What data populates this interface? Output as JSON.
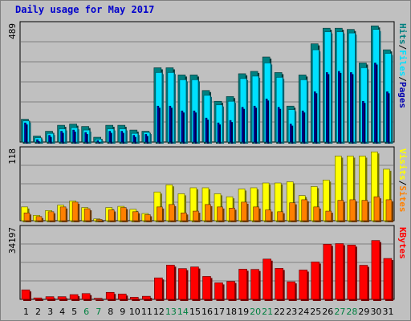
{
  "chart_data": {
    "type": "bar",
    "title": "Daily usage for May 2017",
    "days": [
      "1",
      "2",
      "3",
      "4",
      "5",
      "6",
      "7",
      "8",
      "9",
      "10",
      "11",
      "12",
      "13",
      "14",
      "15",
      "16",
      "17",
      "18",
      "19",
      "20",
      "21",
      "22",
      "23",
      "24",
      "25",
      "26",
      "27",
      "28",
      "29",
      "30",
      "31"
    ],
    "weekend_days": [
      "6",
      "7",
      "13",
      "14",
      "20",
      "21",
      "27",
      "28"
    ],
    "colors": {
      "hits": "#008080",
      "files": "#00e0ff",
      "pages": "#0000b0",
      "visits": "#ffff00",
      "sites": "#ff8000",
      "kbytes": "#ff0000",
      "weekend_label": "#008040",
      "weekday_label": "#000000"
    },
    "panels": [
      {
        "name": "requests",
        "ymax_label": "489",
        "ymax": 489,
        "legend": [
          "Pages",
          "/",
          "Files",
          "/",
          "Hits"
        ],
        "series": [
          {
            "name": "Hits",
            "values": [
              95,
              25,
              45,
              70,
              75,
              65,
              20,
              70,
              70,
              50,
              45,
              310,
              310,
              280,
              280,
              215,
              170,
              190,
              285,
              295,
              355,
              290,
              150,
              280,
              410,
              475,
              475,
              470,
              330,
              485,
              385
            ]
          },
          {
            "name": "Files",
            "values": [
              88,
              18,
              36,
              55,
              60,
              50,
              12,
              55,
              55,
              36,
              40,
              290,
              290,
              260,
              260,
              195,
              155,
              170,
              265,
              275,
              330,
              270,
              135,
              260,
              385,
              460,
              460,
              455,
              310,
              470,
              370
            ]
          },
          {
            "name": "Pages",
            "values": [
              80,
              10,
              28,
              45,
              50,
              40,
              6,
              45,
              45,
              28,
              32,
              150,
              150,
              130,
              130,
              100,
              80,
              90,
              145,
              150,
              180,
              145,
              75,
              130,
              210,
              290,
              295,
              290,
              170,
              330,
              210
            ]
          }
        ]
      },
      {
        "name": "visitors",
        "ymax_label": "118",
        "ymax": 118,
        "legend": [
          "Sites",
          "/",
          "Visits"
        ],
        "series": [
          {
            "name": "Visits",
            "values": [
              23,
              9,
              17,
              26,
              33,
              22,
              3,
              22,
              24,
              19,
              12,
              48,
              60,
              45,
              55,
              55,
              45,
              40,
              53,
              55,
              63,
              63,
              65,
              42,
              57,
              68,
              108,
              108,
              108,
              115,
              86
            ]
          },
          {
            "name": "Sites",
            "values": [
              13,
              7,
              15,
              23,
              31,
              20,
              2,
              18,
              22,
              15,
              10,
              23,
              27,
              13,
              16,
              27,
              23,
              21,
              31,
              23,
              18,
              15,
              30,
              35,
              23,
              16,
              34,
              35,
              34,
              40,
              35
            ]
          }
        ]
      },
      {
        "name": "traffic",
        "ymax_label": "34197",
        "ymax": 34197,
        "legend": [
          "KBytes"
        ],
        "series": [
          {
            "name": "KBytes",
            "values": [
              4600,
              700,
              1300,
              1300,
              2300,
              2800,
              500,
              3400,
              2600,
              1000,
              1500,
              10400,
              16600,
              14900,
              15700,
              11100,
              8000,
              8700,
              14600,
              14500,
              19500,
              15000,
              8500,
              14200,
              18100,
              26700,
              27000,
              26300,
              16500,
              28500,
              19800
            ]
          }
        ]
      }
    ]
  }
}
